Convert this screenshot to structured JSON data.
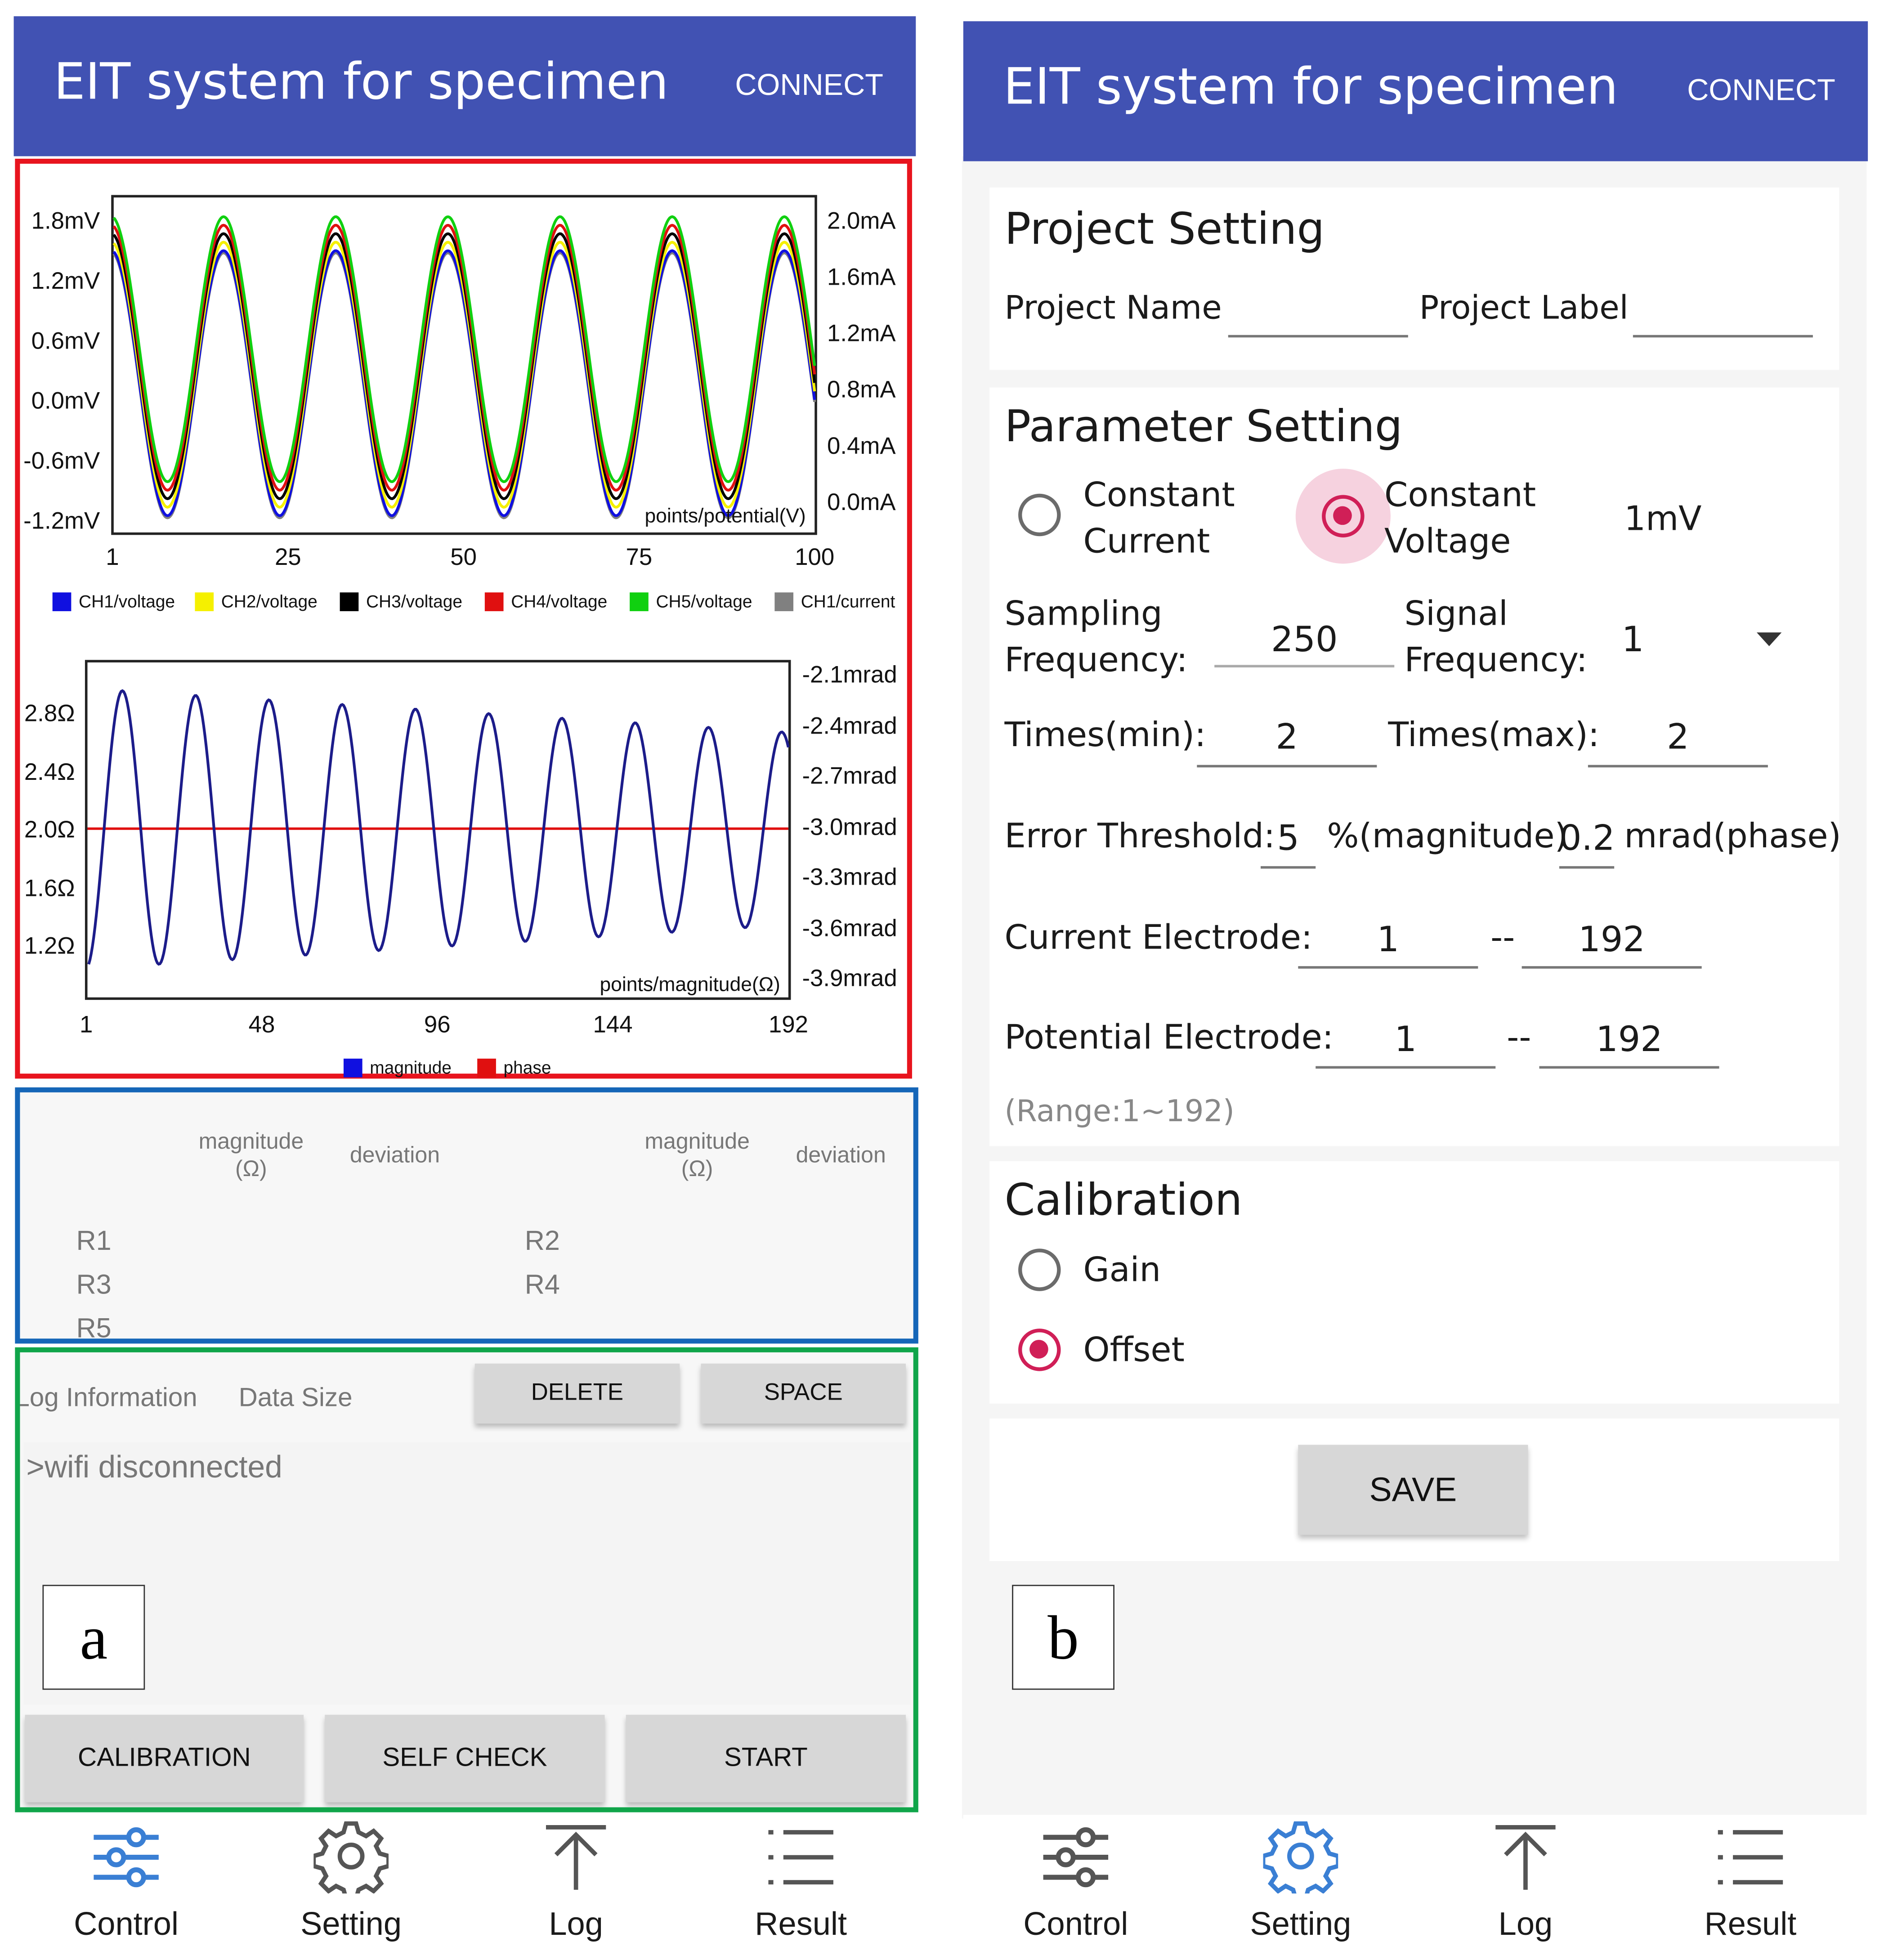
{
  "app": {
    "title": "EIT system for specimen",
    "connect_label": "CONNECT"
  },
  "colors": {
    "appbar": "#4152b3",
    "accent": "#d01f57",
    "frame_chart": "#e8141e",
    "frame_table": "#1566b8",
    "frame_log": "#10a54a"
  },
  "panel_a": {
    "tag": "a",
    "chart1": {
      "left_ticks": [
        "1.8mV",
        "1.2mV",
        "0.6mV",
        "0.0mV",
        "-0.6mV",
        "-1.2mV"
      ],
      "right_ticks": [
        "2.0mA",
        "1.6mA",
        "1.2mA",
        "0.8mA",
        "0.4mA",
        "0.0mA"
      ],
      "x_ticks": [
        "1",
        "25",
        "50",
        "75",
        "100"
      ],
      "inner_label": "points/potential(V)",
      "legend": [
        {
          "name": "CH1/voltage",
          "color": "#1010e0"
        },
        {
          "name": "CH2/voltage",
          "color": "#f5f000"
        },
        {
          "name": "CH3/voltage",
          "color": "#000000"
        },
        {
          "name": "CH4/voltage",
          "color": "#e01010"
        },
        {
          "name": "CH5/voltage",
          "color": "#10d010"
        },
        {
          "name": "CH1/current",
          "color": "#808080"
        }
      ]
    },
    "chart2": {
      "left_ticks": [
        "2.8Ω",
        "2.4Ω",
        "2.0Ω",
        "1.6Ω",
        "1.2Ω"
      ],
      "right_ticks": [
        "-2.1mrad",
        "-2.4mrad",
        "-2.7mrad",
        "-3.0mrad",
        "-3.3mrad",
        "-3.6mrad",
        "-3.9mrad"
      ],
      "x_ticks": [
        "1",
        "48",
        "96",
        "144",
        "192"
      ],
      "inner_label": "points/magnitude(Ω)",
      "legend": [
        {
          "name": "magnitude",
          "color": "#1010e0"
        },
        {
          "name": "phase",
          "color": "#e01010"
        }
      ]
    },
    "table": {
      "header_mag": "magnitude",
      "header_mag_unit": "(Ω)",
      "header_dev": "deviation",
      "rows_left": [
        "R1",
        "R3",
        "R5"
      ],
      "rows_right": [
        "R2",
        "R4"
      ]
    },
    "log": {
      "info_label": "Log Information",
      "size_label": "Data Size",
      "delete_label": "DELETE",
      "space_label": "SPACE",
      "message": ">wifi disconnected",
      "calibration_label": "CALIBRATION",
      "selfcheck_label": "SELF CHECK",
      "start_label": "START"
    }
  },
  "panel_b": {
    "tag": "b",
    "project": {
      "heading": "Project Setting",
      "name_label": "Project Name",
      "label_label": "Project Label"
    },
    "params": {
      "heading": "Parameter Setting",
      "constant_current": "Constant\nCurrent",
      "constant_current_l1": "Constant",
      "constant_current_l2": "Current",
      "constant_voltage_l1": "Constant",
      "constant_voltage_l2": "Voltage",
      "mode_value": "1mV",
      "sampling_l1": "Sampling",
      "sampling_l2": "Frequency:",
      "sampling_value": "250",
      "signal_l1": "Signal",
      "signal_l2": "Frequency:",
      "signal_value": "1",
      "times_min_label": "Times(min):",
      "times_min_value": "2",
      "times_max_label": "Times(max):",
      "times_max_value": "2",
      "error_label": "Error Threshold:",
      "error_mag_value": "5",
      "error_mag_unit": "%(magnitude)",
      "error_phase_value": "0.2",
      "error_phase_unit": "mrad(phase)",
      "current_electrode_label": "Current Electrode:",
      "current_from": "1",
      "current_to": "192",
      "potential_electrode_label": "Potential Electrode:",
      "potential_from": "1",
      "potential_to": "192",
      "dash": "--",
      "range_note": "(Range:1~192)"
    },
    "calibration": {
      "heading": "Calibration",
      "gain": "Gain",
      "offset": "Offset"
    },
    "save_label": "SAVE"
  },
  "nav": {
    "control": "Control",
    "setting": "Setting",
    "log": "Log",
    "result": "Result"
  }
}
